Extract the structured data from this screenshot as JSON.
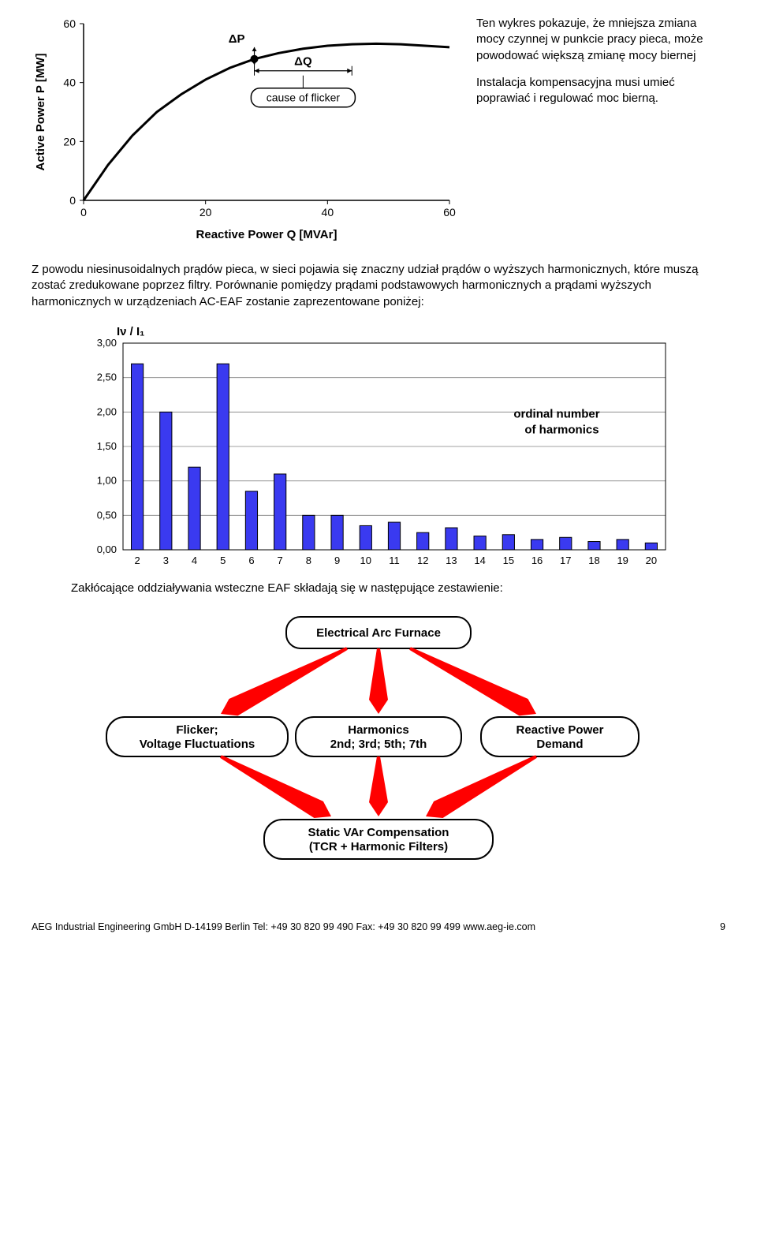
{
  "chart1": {
    "type": "line",
    "x_axis_label": "Reactive Power Q [MVAr]",
    "y_axis_label": "Active Power P  [MW]",
    "annotation_dp": "ΔP",
    "annotation_dq": "ΔQ",
    "callout": "cause of flicker",
    "x_ticks": [
      "0",
      "20",
      "40",
      "60"
    ],
    "y_ticks": [
      "0",
      "20",
      "40",
      "60"
    ],
    "xlim": [
      0,
      60
    ],
    "ylim": [
      0,
      60
    ],
    "curve_points": [
      [
        0,
        0
      ],
      [
        4,
        12
      ],
      [
        8,
        22
      ],
      [
        12,
        30
      ],
      [
        16,
        36
      ],
      [
        20,
        41
      ],
      [
        24,
        45
      ],
      [
        28,
        48
      ],
      [
        32,
        50
      ],
      [
        36,
        51.5
      ],
      [
        40,
        52.5
      ],
      [
        44,
        53
      ],
      [
        48,
        53.2
      ],
      [
        52,
        53
      ],
      [
        56,
        52.5
      ],
      [
        60,
        52
      ]
    ],
    "marker_x": 28,
    "dq_x_range": [
      28,
      44
    ],
    "dq_y": 44,
    "line_color": "#000000",
    "line_width": 3,
    "axis_color": "#000000",
    "background": "#ffffff",
    "font_size_axis": 14,
    "font_size_label": 15
  },
  "side_text": {
    "p1": "Ten wykres pokazuje, że mniejsza zmiana mocy czynnej w punkcie pracy pieca, może powodować większą zmianę mocy biernej",
    "p2": "Instalacja kompensacyjna musi umieć poprawiać i regulować moc bierną."
  },
  "body_para": "Z powodu niesinusoidalnych prądów pieca, w sieci pojawia się znaczny udział prądów o wyższych harmonicznych, które muszą zostać zredukowane poprzez filtry. Porównanie pomiędzy prądami podstawowych harmonicznych a prądami wyższych harmonicznych w urządzeniach AC-EAF zostanie zaprezentowane poniżej:",
  "chart2": {
    "type": "bar",
    "y_label": "Iν / I₁",
    "annotation": "ordinal number of harmonics",
    "categories": [
      "2",
      "3",
      "4",
      "5",
      "6",
      "7",
      "8",
      "9",
      "10",
      "11",
      "12",
      "13",
      "14",
      "15",
      "16",
      "17",
      "18",
      "19",
      "20"
    ],
    "values": [
      2.7,
      2.0,
      1.2,
      2.7,
      0.85,
      1.1,
      0.5,
      0.5,
      0.35,
      0.4,
      0.25,
      0.32,
      0.2,
      0.22,
      0.15,
      0.18,
      0.12,
      0.15,
      0.1
    ],
    "ylim": [
      0,
      3.0
    ],
    "y_ticks": [
      "0,00",
      "0,50",
      "1,00",
      "1,50",
      "2,00",
      "2,50",
      "3,00"
    ],
    "bar_fill": "#3a3af0",
    "bar_border": "#000000",
    "grid_color": "#808080",
    "font_size_axis": 13,
    "font_size_annotation": 15,
    "bar_width_ratio": 0.42
  },
  "mid_text": "Zakłócające oddziaływania wsteczne EAF składają się w następujące zestawienie:",
  "diagram": {
    "type": "flowchart",
    "arrow_color": "#ff0000",
    "node_border": "#000000",
    "node_bg": "#ffffff",
    "font_size": 15,
    "nodes": {
      "top": {
        "label": "Electrical Arc Furnace"
      },
      "left": {
        "label": "Flicker;\nVoltage Fluctuations"
      },
      "center": {
        "label": "Harmonics\n2nd; 3rd; 5th; 7th"
      },
      "right": {
        "label": "Reactive Power\nDemand"
      },
      "bottom": {
        "label": "Static VAr Compensation\n(TCR + Harmonic Filters)"
      }
    }
  },
  "footer": {
    "text": "AEG Industrial Engineering GmbH  D-14199 Berlin  Tel: +49 30 820 99 490  Fax: +49 30 820 99 499  www.aeg-ie.com",
    "page": "9"
  }
}
